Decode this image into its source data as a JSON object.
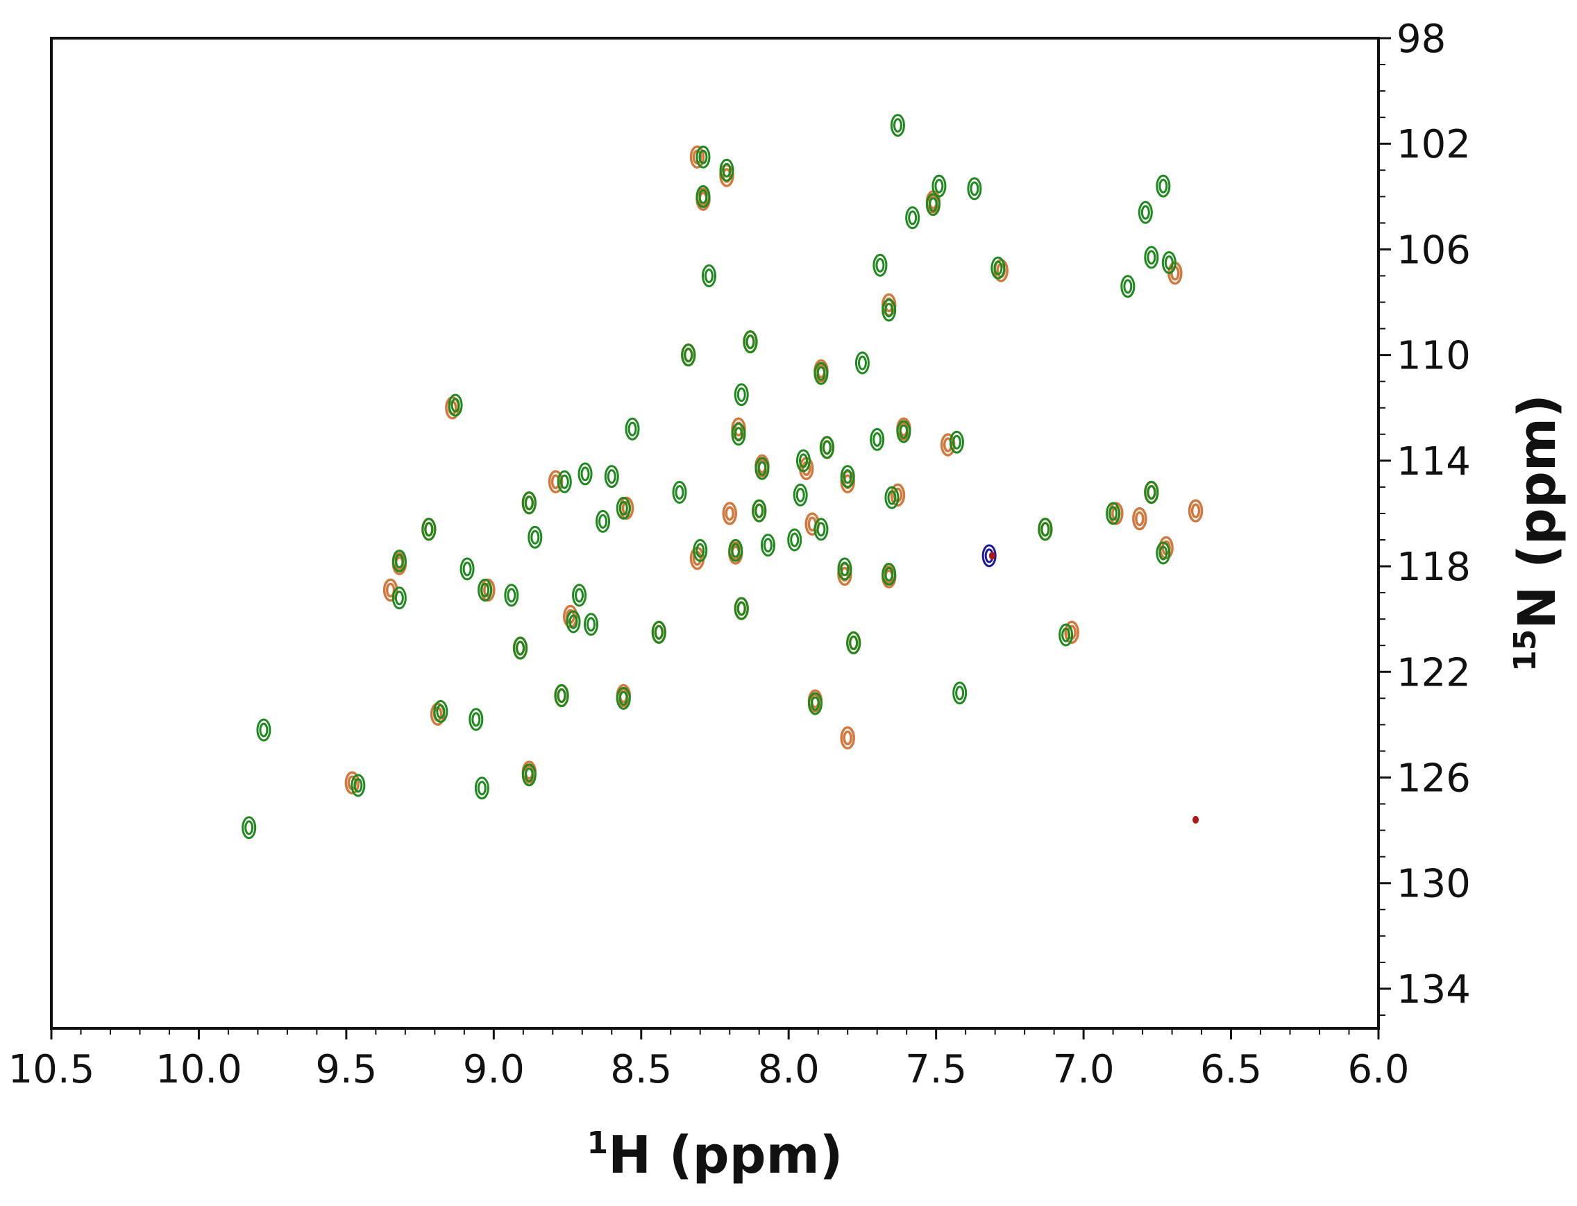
{
  "chart_data": {
    "type": "scatter",
    "title": "",
    "xlabel": {
      "sup": "1",
      "main": "H (ppm)"
    },
    "ylabel": {
      "sup": "15",
      "main": "N (ppm)"
    },
    "x_reversed": true,
    "y_reversed": true,
    "xlim": [
      10.5,
      6.0
    ],
    "ylim": [
      98,
      135.5
    ],
    "x_ticks": [
      "10.5",
      "10.0",
      "9.5",
      "9.0",
      "8.5",
      "8.0",
      "7.5",
      "7.0",
      "6.5",
      "6.0"
    ],
    "y_ticks": [
      "98",
      "102",
      "106",
      "110",
      "114",
      "118",
      "122",
      "126",
      "130",
      "134"
    ],
    "y_axis_side": "right",
    "grid": false,
    "colors": {
      "green": "#1e8a1e",
      "orange": "#d2783c",
      "blue": "#1a1aa0",
      "red": "#b01818"
    },
    "series": [
      {
        "color_key": "green",
        "points": [
          [
            7.63,
            101.3
          ],
          [
            8.29,
            102.5
          ],
          [
            8.21,
            103.0
          ],
          [
            7.49,
            103.6
          ],
          [
            7.37,
            103.7
          ],
          [
            6.73,
            103.6
          ],
          [
            8.29,
            104.0
          ],
          [
            7.51,
            104.3
          ],
          [
            7.58,
            104.8
          ],
          [
            6.79,
            104.6
          ],
          [
            6.77,
            106.3
          ],
          [
            6.71,
            106.5
          ],
          [
            7.29,
            106.7
          ],
          [
            7.69,
            106.6
          ],
          [
            8.27,
            107.0
          ],
          [
            6.85,
            107.4
          ],
          [
            7.66,
            108.3
          ],
          [
            8.13,
            109.5
          ],
          [
            8.34,
            110.0
          ],
          [
            7.89,
            110.7
          ],
          [
            8.16,
            111.5
          ],
          [
            9.13,
            111.9
          ],
          [
            8.53,
            112.8
          ],
          [
            8.17,
            113.0
          ],
          [
            7.61,
            112.9
          ],
          [
            7.7,
            113.2
          ],
          [
            7.43,
            113.3
          ],
          [
            7.87,
            113.5
          ],
          [
            8.09,
            114.3
          ],
          [
            7.95,
            114.0
          ],
          [
            8.69,
            114.5
          ],
          [
            8.76,
            114.8
          ],
          [
            8.6,
            114.6
          ],
          [
            7.8,
            114.6
          ],
          [
            8.37,
            115.2
          ],
          [
            7.65,
            115.4
          ],
          [
            8.88,
            115.6
          ],
          [
            8.56,
            115.8
          ],
          [
            6.9,
            116.0
          ],
          [
            6.77,
            115.2
          ],
          [
            8.1,
            115.9
          ],
          [
            7.96,
            115.3
          ],
          [
            9.22,
            116.6
          ],
          [
            8.63,
            116.3
          ],
          [
            7.89,
            116.6
          ],
          [
            7.13,
            116.6
          ],
          [
            8.86,
            116.9
          ],
          [
            8.07,
            117.2
          ],
          [
            7.98,
            117.0
          ],
          [
            8.3,
            117.4
          ],
          [
            8.18,
            117.4
          ],
          [
            9.32,
            117.8
          ],
          [
            6.73,
            117.5
          ],
          [
            7.81,
            118.1
          ],
          [
            7.66,
            118.3
          ],
          [
            9.03,
            118.9
          ],
          [
            8.94,
            119.1
          ],
          [
            9.32,
            119.2
          ],
          [
            8.71,
            119.1
          ],
          [
            8.16,
            119.6
          ],
          [
            8.73,
            120.1
          ],
          [
            8.67,
            120.2
          ],
          [
            8.44,
            120.5
          ],
          [
            7.06,
            120.6
          ],
          [
            8.91,
            121.1
          ],
          [
            7.78,
            120.9
          ],
          [
            8.77,
            122.9
          ],
          [
            8.56,
            123.0
          ],
          [
            7.42,
            122.8
          ],
          [
            7.91,
            123.2
          ],
          [
            9.18,
            123.5
          ],
          [
            9.06,
            123.8
          ],
          [
            9.78,
            124.2
          ],
          [
            8.88,
            125.9
          ],
          [
            9.46,
            126.3
          ],
          [
            9.04,
            126.4
          ],
          [
            9.83,
            127.9
          ],
          [
            9.09,
            118.1
          ],
          [
            7.75,
            110.3
          ]
        ]
      },
      {
        "color_key": "orange",
        "points": [
          [
            8.31,
            102.5
          ],
          [
            8.21,
            103.2
          ],
          [
            8.29,
            104.1
          ],
          [
            7.51,
            104.2
          ],
          [
            7.28,
            106.8
          ],
          [
            6.69,
            106.9
          ],
          [
            7.66,
            108.1
          ],
          [
            8.13,
            109.5
          ],
          [
            8.34,
            110.0
          ],
          [
            7.89,
            110.6
          ],
          [
            9.14,
            112.0
          ],
          [
            8.17,
            112.8
          ],
          [
            7.61,
            112.8
          ],
          [
            7.46,
            113.4
          ],
          [
            7.87,
            113.5
          ],
          [
            8.79,
            114.8
          ],
          [
            7.94,
            114.3
          ],
          [
            8.09,
            114.2
          ],
          [
            7.8,
            114.8
          ],
          [
            8.55,
            115.8
          ],
          [
            8.88,
            115.6
          ],
          [
            7.63,
            115.3
          ],
          [
            6.77,
            115.2
          ],
          [
            8.2,
            116.0
          ],
          [
            6.89,
            116.0
          ],
          [
            6.81,
            116.2
          ],
          [
            6.62,
            115.9
          ],
          [
            8.1,
            115.9
          ],
          [
            9.22,
            116.6
          ],
          [
            7.92,
            116.4
          ],
          [
            7.13,
            116.6
          ],
          [
            8.31,
            117.7
          ],
          [
            8.18,
            117.5
          ],
          [
            6.72,
            117.3
          ],
          [
            9.32,
            117.9
          ],
          [
            7.81,
            118.3
          ],
          [
            7.66,
            118.4
          ],
          [
            9.35,
            118.9
          ],
          [
            9.02,
            118.9
          ],
          [
            8.16,
            119.6
          ],
          [
            8.74,
            119.9
          ],
          [
            8.44,
            120.5
          ],
          [
            7.04,
            120.5
          ],
          [
            8.91,
            121.1
          ],
          [
            7.78,
            120.9
          ],
          [
            8.77,
            122.9
          ],
          [
            8.56,
            122.9
          ],
          [
            7.91,
            123.1
          ],
          [
            9.19,
            123.6
          ],
          [
            7.8,
            124.5
          ],
          [
            8.88,
            125.8
          ],
          [
            9.48,
            126.2
          ]
        ]
      },
      {
        "color_key": "blue",
        "points": [
          [
            7.32,
            117.6
          ]
        ]
      },
      {
        "color_key": "red",
        "points": [
          [
            7.31,
            117.6
          ],
          [
            6.62,
            127.6
          ]
        ]
      }
    ]
  }
}
